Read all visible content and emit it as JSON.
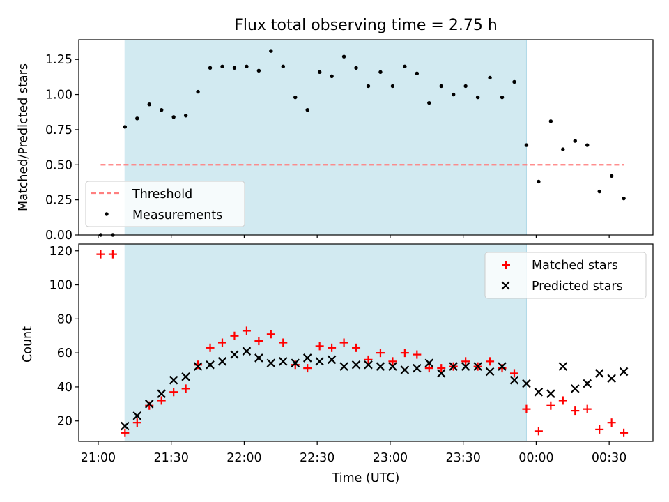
{
  "colors": {
    "span": "#add8e6",
    "threshold": "#ff7f7f",
    "measurement": "#000000",
    "matched": "#ff0000",
    "predicted": "#000000",
    "axis": "#000000"
  },
  "chart_data": [
    {
      "type": "scatter",
      "title": "Flux total observing time = 2.75 h",
      "xlabel": "",
      "ylabel": "Matched/Predicted stars",
      "xlim": [
        "20:52",
        "00:48"
      ],
      "ylim": [
        0,
        1.39
      ],
      "xticks": [
        "21:00",
        "21:30",
        "22:00",
        "22:30",
        "23:00",
        "23:30",
        "00:00",
        "00:30"
      ],
      "yticks": [
        0.0,
        0.25,
        0.5,
        0.75,
        1.0,
        1.25
      ],
      "ytick_labels": [
        "0.00",
        "0.25",
        "0.50",
        "0.75",
        "1.00",
        "1.25"
      ],
      "observing_span": [
        "21:11",
        "23:56"
      ],
      "threshold": {
        "name": "Threshold",
        "y": 0.5,
        "x_range": [
          "21:01",
          "00:36"
        ]
      },
      "legend": {
        "placement": "lower-left",
        "entries": [
          "Threshold",
          "Measurements"
        ]
      },
      "x": [
        "21:01",
        "21:06",
        "21:11",
        "21:16",
        "21:21",
        "21:26",
        "21:31",
        "21:36",
        "21:41",
        "21:46",
        "21:51",
        "21:56",
        "22:01",
        "22:06",
        "22:11",
        "22:16",
        "22:21",
        "22:26",
        "22:31",
        "22:36",
        "22:41",
        "22:46",
        "22:51",
        "22:56",
        "23:01",
        "23:06",
        "23:11",
        "23:16",
        "23:21",
        "23:26",
        "23:31",
        "23:36",
        "23:41",
        "23:46",
        "23:51",
        "23:56",
        "00:01",
        "00:06",
        "00:11",
        "00:16",
        "00:21",
        "00:26",
        "00:31",
        "00:36"
      ],
      "series": [
        {
          "name": "Measurements",
          "values": [
            0.0,
            0.0,
            0.77,
            0.83,
            0.93,
            0.89,
            0.84,
            0.85,
            1.02,
            1.19,
            1.2,
            1.19,
            1.2,
            1.17,
            1.31,
            1.2,
            0.98,
            0.89,
            1.16,
            1.13,
            1.27,
            1.19,
            1.06,
            1.16,
            1.06,
            1.2,
            1.15,
            0.94,
            1.06,
            1.0,
            1.06,
            0.98,
            1.12,
            0.98,
            1.09,
            0.64,
            0.38,
            0.81,
            0.61,
            0.67,
            0.64,
            0.31,
            0.42,
            0.26
          ]
        }
      ]
    },
    {
      "type": "scatter",
      "title": "",
      "xlabel": "Time (UTC)",
      "ylabel": "Count",
      "xlim": [
        "20:52",
        "00:48"
      ],
      "ylim": [
        8,
        124
      ],
      "xticks": [
        "21:00",
        "21:30",
        "22:00",
        "22:30",
        "23:00",
        "23:30",
        "00:00",
        "00:30"
      ],
      "yticks": [
        20,
        40,
        60,
        80,
        100,
        120
      ],
      "observing_span": [
        "21:11",
        "23:56"
      ],
      "legend": {
        "placement": "upper-right",
        "entries": [
          "Matched stars",
          "Predicted stars"
        ]
      },
      "x": [
        "21:01",
        "21:06",
        "21:11",
        "21:16",
        "21:21",
        "21:26",
        "21:31",
        "21:36",
        "21:41",
        "21:46",
        "21:51",
        "21:56",
        "22:01",
        "22:06",
        "22:11",
        "22:16",
        "22:21",
        "22:26",
        "22:31",
        "22:36",
        "22:41",
        "22:46",
        "22:51",
        "22:56",
        "23:01",
        "23:06",
        "23:11",
        "23:16",
        "23:21",
        "23:26",
        "23:31",
        "23:36",
        "23:41",
        "23:46",
        "23:51",
        "23:56",
        "00:01",
        "00:06",
        "00:11",
        "00:16",
        "00:21",
        "00:26",
        "00:31",
        "00:36"
      ],
      "series": [
        {
          "name": "Matched stars",
          "values": [
            118,
            118,
            13,
            19,
            29,
            32,
            37,
            39,
            53,
            63,
            66,
            70,
            73,
            67,
            71,
            66,
            53,
            51,
            64,
            63,
            66,
            63,
            56,
            60,
            55,
            60,
            59,
            51,
            51,
            52,
            55,
            52,
            55,
            51,
            48,
            27,
            14,
            29,
            32,
            26,
            27,
            15,
            19,
            13
          ]
        },
        {
          "name": "Predicted stars",
          "values": [
            null,
            null,
            17,
            23,
            30,
            36,
            44,
            46,
            52,
            53,
            55,
            59,
            61,
            57,
            54,
            55,
            54,
            57,
            55,
            56,
            52,
            53,
            53,
            52,
            52,
            50,
            51,
            54,
            48,
            52,
            52,
            52,
            49,
            52,
            44,
            42,
            37,
            36,
            52,
            39,
            42,
            48,
            45,
            49
          ]
        }
      ]
    }
  ]
}
